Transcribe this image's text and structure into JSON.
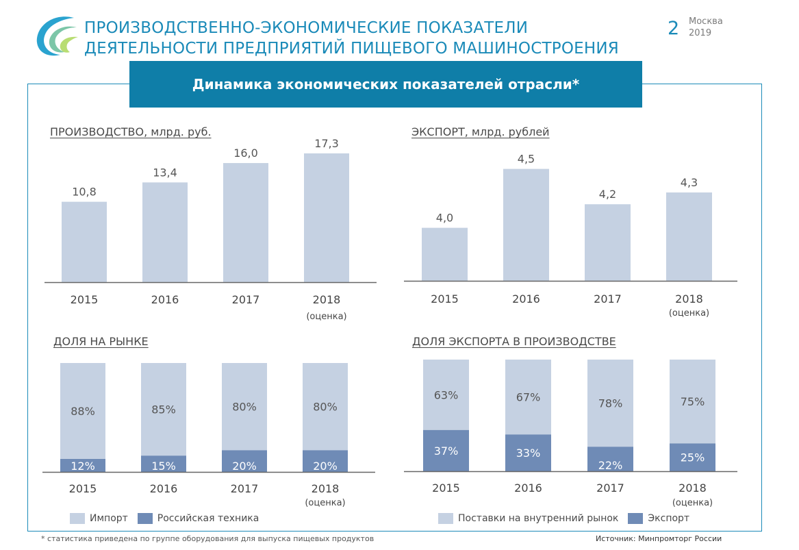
{
  "header": {
    "title_line1": "ПРОИЗВОДСТВЕННО-ЭКОНОМИЧЕСКИЕ ПОКАЗАТЕЛИ",
    "title_line2": "ДЕЯТЕЛЬНОСТИ ПРЕДПРИЯТИЙ ПИЩЕВОГО МАШИНОСТРОЕНИЯ",
    "slide_number": "2",
    "city": "Москва",
    "year": "2019"
  },
  "banner": {
    "text": "Динамика экономических показателей отрасли*"
  },
  "colors": {
    "light": "#c5d1e2",
    "dark": "#6f8bb6",
    "accent": "#0f7ea8"
  },
  "chart_data": [
    {
      "id": "production",
      "type": "bar",
      "title": "ПРОИЗВОДСТВО, млрд. руб.",
      "categories": [
        "2015",
        "2016",
        "2017",
        "2018"
      ],
      "category_notes": [
        "",
        "",
        "",
        "(оценка)"
      ],
      "values": [
        10.8,
        13.4,
        16.0,
        17.3
      ],
      "value_labels": [
        "10,8",
        "13,4",
        "16,0",
        "17,3"
      ],
      "ylim": [
        0,
        19.5
      ]
    },
    {
      "id": "export",
      "type": "bar",
      "title": "ЭКСПОРТ, млрд. рублей",
      "categories": [
        "2015",
        "2016",
        "2017",
        "2018"
      ],
      "category_notes": [
        "",
        "",
        "",
        "(оценка)"
      ],
      "values": [
        4.0,
        4.5,
        4.2,
        4.3
      ],
      "value_labels": [
        "4,0",
        "4,5",
        "4,2",
        "4,3"
      ],
      "ylim": [
        3.55,
        4.55
      ]
    },
    {
      "id": "market_share",
      "type": "bar",
      "stacked": true,
      "title": "ДОЛЯ НА РЫНКЕ",
      "categories": [
        "2015",
        "2016",
        "2017",
        "2018"
      ],
      "category_notes": [
        "",
        "",
        "",
        "(оценка)"
      ],
      "series": [
        {
          "name": "Российская техника",
          "values": [
            12,
            15,
            20,
            20
          ],
          "labels": [
            "12%",
            "15%",
            "20%",
            "20%"
          ]
        },
        {
          "name": "Импорт",
          "values": [
            88,
            85,
            80,
            80
          ],
          "labels": [
            "88%",
            "85%",
            "80%",
            "80%"
          ]
        }
      ],
      "ylim": [
        0,
        100
      ],
      "legend": [
        "Импорт",
        "Российская техника"
      ]
    },
    {
      "id": "export_share",
      "type": "bar",
      "stacked": true,
      "title": "ДОЛЯ ЭКСПОРТА В ПРОИЗВОДСТВЕ",
      "categories": [
        "2015",
        "2016",
        "2017",
        "2018"
      ],
      "category_notes": [
        "",
        "",
        "",
        "(оценка)"
      ],
      "series": [
        {
          "name": "Экспорт",
          "values": [
            37,
            33,
            22,
            25
          ],
          "labels": [
            "37%",
            "33%",
            "22%",
            "25%"
          ]
        },
        {
          "name": "Поставки на внутренний рынок",
          "values": [
            63,
            67,
            78,
            75
          ],
          "labels": [
            "63%",
            "67%",
            "78%",
            "75%"
          ]
        }
      ],
      "ylim": [
        0,
        100
      ],
      "legend": [
        "Поставки на внутренний рынок",
        "Экспорт"
      ]
    }
  ],
  "footer": {
    "footnote": "* статистика приведена по группе оборудования для выпуска пищевых продуктов",
    "source": "Источник: Минпромторг России"
  }
}
